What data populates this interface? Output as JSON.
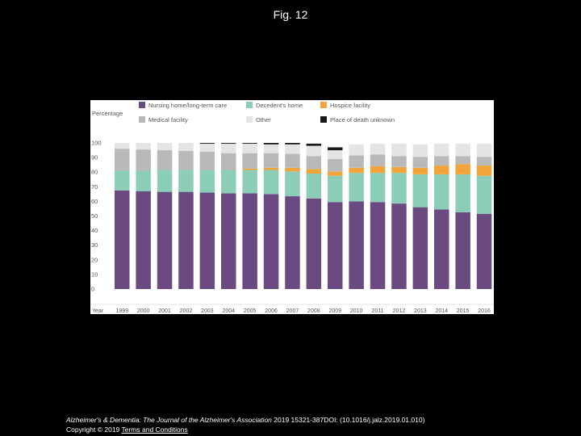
{
  "figure": {
    "title": "Fig. 12"
  },
  "footer": {
    "journal": "Alzheimer's & Dementia: The Journal of the Alzheimer's Association",
    "citation": " 2019 15321-387DOI: (10.1016/j.jalz.2019.01.010)",
    "copyright": "Copyright © 2019 ",
    "link": "Terms and Conditions"
  },
  "colors": {
    "nursing": "#6a4a80",
    "home": "#8ccdb8",
    "hospice": "#f0a43a",
    "medical": "#b9b9b9",
    "other": "#e4e4e4",
    "unknown": "#1a1a1a"
  },
  "chart_data": {
    "type": "bar",
    "stacked": true,
    "ylabel": "Percentage",
    "xlabel": "Year",
    "ylim": [
      0,
      100
    ],
    "yticks": [
      0,
      10,
      20,
      30,
      40,
      50,
      60,
      70,
      80,
      90,
      100
    ],
    "categories": [
      "1999",
      "2000",
      "2001",
      "2002",
      "2003",
      "2004",
      "2005",
      "2006",
      "2007",
      "2008",
      "2009",
      "2010",
      "2011",
      "2012",
      "2013",
      "2014",
      "2015",
      "2016"
    ],
    "series": [
      {
        "key": "nursing",
        "name": "Nursing home/long-term care",
        "values": [
          67.5,
          67,
          66.5,
          66.5,
          66,
          65.5,
          65.5,
          65,
          63.5,
          62,
          59.5,
          60,
          59.5,
          58.5,
          56,
          54.5,
          52.5,
          51.5
        ]
      },
      {
        "key": "home",
        "name": "Decedent's home",
        "values": [
          13.5,
          14,
          15,
          15,
          15.5,
          16,
          16,
          16.5,
          17,
          17,
          18,
          19.5,
          20,
          21,
          22.5,
          24,
          26,
          26
        ]
      },
      {
        "key": "hospice",
        "name": "Hospice facility",
        "values": [
          0,
          0,
          0,
          0,
          0,
          0,
          1,
          1.5,
          2.5,
          3,
          3,
          3.5,
          4.5,
          4,
          4.5,
          6,
          7,
          7
        ]
      },
      {
        "key": "medical",
        "name": "Medical facility",
        "values": [
          15,
          14.5,
          13.5,
          13,
          12.5,
          11.5,
          10.5,
          10,
          9.5,
          9,
          8.5,
          8.5,
          8,
          7.5,
          7.5,
          6.5,
          5.5,
          6
        ]
      },
      {
        "key": "other",
        "name": "Other",
        "values": [
          4,
          4.5,
          5,
          5.5,
          5.5,
          6.5,
          6.5,
          6,
          6.5,
          7,
          6,
          7.5,
          7.5,
          8.5,
          8.5,
          8.5,
          8.5,
          9
        ]
      },
      {
        "key": "unknown",
        "name": "Place of death unknown",
        "values": [
          0,
          0,
          0,
          0,
          0.5,
          0.5,
          0.5,
          1,
          1,
          1.5,
          2,
          0,
          0,
          0,
          0,
          0,
          0,
          0
        ]
      }
    ]
  }
}
